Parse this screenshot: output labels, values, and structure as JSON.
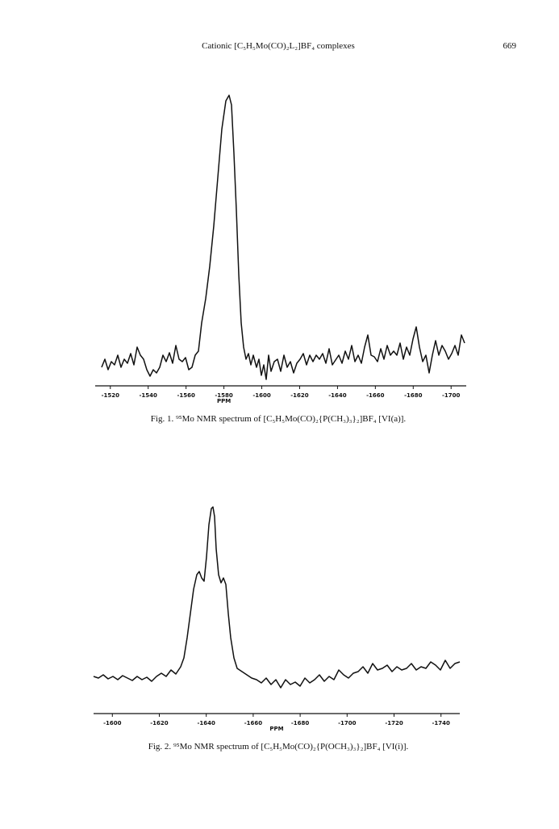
{
  "header": {
    "title": "Cationic [C₅H₅Mo(CO)₂L₂]BF₄ complexes",
    "page_number": "669"
  },
  "figures": [
    {
      "xlim": [
        -1512,
        -1708
      ],
      "xticks": [
        -1520,
        -1540,
        -1560,
        -1580,
        -1600,
        -1620,
        -1640,
        -1660,
        -1680,
        -1700
      ],
      "xlabel": "PPM",
      "caption": "Fig. 1. ⁹⁵Mo NMR spectrum of [C₅H₅Mo(CO)₂{P(CH₃)₃}₂]BF₄ [VI(a)]."
    },
    {
      "xlim": [
        -1592,
        -1748
      ],
      "xticks": [
        -1600,
        -1620,
        -1640,
        -1660,
        -1680,
        -1700,
        -1720,
        -1740
      ],
      "xlabel": "PPM",
      "caption": "Fig. 2. ⁹⁵Mo NMR spectrum of [C₅H₅Mo(CO)₂{P(OCH₃)₃}₂]BF₄ [VI(i)]."
    }
  ]
}
